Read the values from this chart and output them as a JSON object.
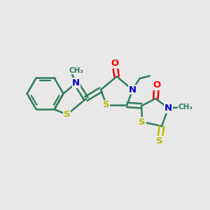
{
  "bg_color": "#e8e8e8",
  "bond_color": "#2d7d5a",
  "bond_width": 1.8,
  "N_color": "#0000cc",
  "O_color": "#ff0000",
  "S_color": "#bbbb00",
  "fig_size": [
    3.0,
    3.0
  ],
  "dpi": 100,
  "xlim": [
    0,
    10
  ],
  "ylim": [
    0,
    10
  ]
}
